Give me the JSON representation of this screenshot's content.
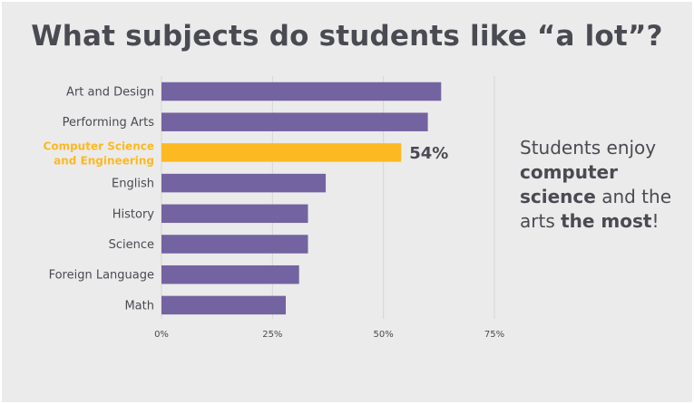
{
  "title": "What subjects do students like “a lot”?",
  "callout": {
    "p1": "Students enjoy ",
    "b1": "computer science",
    "p2": " and the arts ",
    "b2": "the most",
    "p3": "!"
  },
  "colors": {
    "bar": "#7463a1",
    "highlight": "#fdb921",
    "label": "#4a4a52",
    "grid": "#d6d6d6",
    "background": "#ebebeb"
  },
  "chart_data": {
    "type": "bar",
    "orientation": "horizontal",
    "categories": [
      "Art and Design",
      "Performing Arts",
      "Computer Science and Engineering",
      "English",
      "History",
      "Science",
      "Foreign Language",
      "Math"
    ],
    "values": [
      63,
      60,
      54,
      37,
      33,
      33,
      31,
      28
    ],
    "highlight_index": 2,
    "data_labels": [
      {
        "index": 2,
        "text": "54%"
      }
    ],
    "xlim": [
      0,
      75
    ],
    "xticks": [
      "0%",
      "25%",
      "50%",
      "75%"
    ],
    "xtick_values": [
      0,
      25,
      50,
      75
    ],
    "grid": true
  }
}
